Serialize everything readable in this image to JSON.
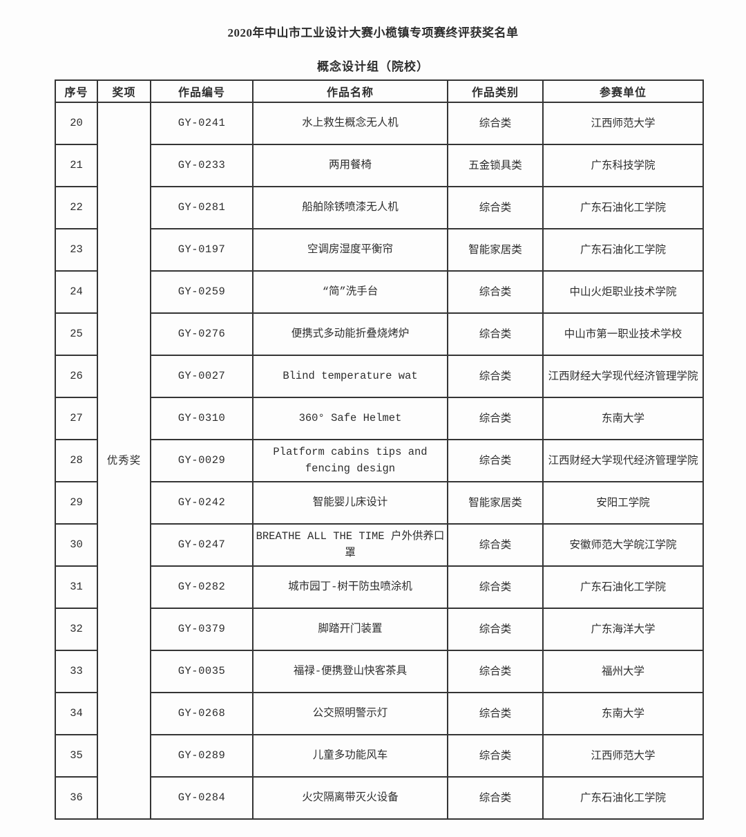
{
  "title": "2020年中山市工业设计大赛小榄镇专项赛终评获奖名单",
  "subtitle": "概念设计组（院校）",
  "table": {
    "headers": [
      "序号",
      "奖项",
      "作品编号",
      "作品名称",
      "作品类别",
      "参赛单位"
    ],
    "award": "优秀奖",
    "rows": [
      {
        "no": "20",
        "code": "GY-0241",
        "name": "水上救生概念无人机",
        "category": "综合类",
        "org": "江西师范大学"
      },
      {
        "no": "21",
        "code": "GY-0233",
        "name": "两用餐椅",
        "category": "五金锁具类",
        "org": "广东科技学院"
      },
      {
        "no": "22",
        "code": "GY-0281",
        "name": "船舶除锈喷漆无人机",
        "category": "综合类",
        "org": "广东石油化工学院"
      },
      {
        "no": "23",
        "code": "GY-0197",
        "name": "空调房湿度平衡帘",
        "category": "智能家居类",
        "org": "广东石油化工学院"
      },
      {
        "no": "24",
        "code": "GY-0259",
        "name": "“简”洗手台",
        "category": "综合类",
        "org": "中山火炬职业技术学院"
      },
      {
        "no": "25",
        "code": "GY-0276",
        "name": "便携式多动能折叠烧烤炉",
        "category": "综合类",
        "org": "中山市第一职业技术学校"
      },
      {
        "no": "26",
        "code": "GY-0027",
        "name": "Blind temperature wat",
        "category": "综合类",
        "org": "江西财经大学现代经济管理学院"
      },
      {
        "no": "27",
        "code": "GY-0310",
        "name": "360° Safe Helmet",
        "category": "综合类",
        "org": "东南大学"
      },
      {
        "no": "28",
        "code": "GY-0029",
        "name": "Platform cabins tips and fencing design",
        "category": "综合类",
        "org": "江西财经大学现代经济管理学院"
      },
      {
        "no": "29",
        "code": "GY-0242",
        "name": "智能婴儿床设计",
        "category": "智能家居类",
        "org": "安阳工学院"
      },
      {
        "no": "30",
        "code": "GY-0247",
        "name": "BREATHE ALL THE TIME 户外供养口罩",
        "category": "综合类",
        "org": "安徽师范大学皖江学院"
      },
      {
        "no": "31",
        "code": "GY-0282",
        "name": "城市园丁-树干防虫喷涂机",
        "category": "综合类",
        "org": "广东石油化工学院"
      },
      {
        "no": "32",
        "code": "GY-0379",
        "name": "脚踏开门装置",
        "category": "综合类",
        "org": "广东海洋大学"
      },
      {
        "no": "33",
        "code": "GY-0035",
        "name": "福禄-便携登山快客茶具",
        "category": "综合类",
        "org": "福州大学"
      },
      {
        "no": "34",
        "code": "GY-0268",
        "name": "公交照明警示灯",
        "category": "综合类",
        "org": "东南大学"
      },
      {
        "no": "35",
        "code": "GY-0289",
        "name": "儿童多功能风车",
        "category": "综合类",
        "org": "江西师范大学"
      },
      {
        "no": "36",
        "code": "GY-0284",
        "name": "火灾隔离带灭火设备",
        "category": "综合类",
        "org": "广东石油化工学院"
      }
    ]
  }
}
